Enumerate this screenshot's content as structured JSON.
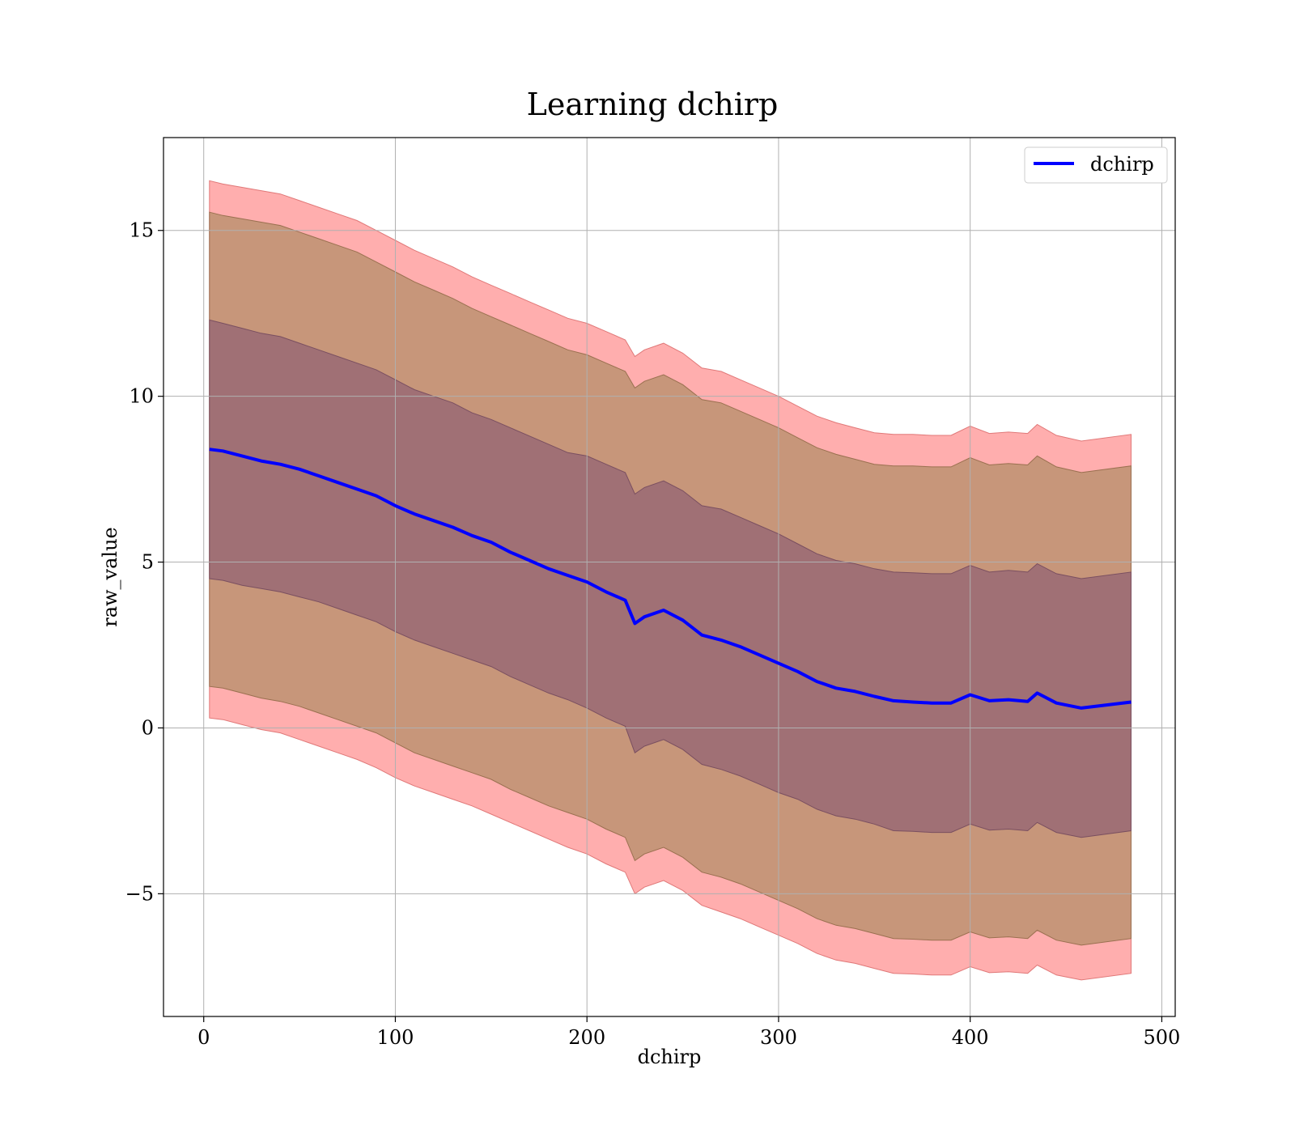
{
  "chart_data": {
    "type": "area",
    "title": "Learning dchirp",
    "xlabel": "dchirp",
    "ylabel": "raw_value",
    "xlim": [
      -21,
      507
    ],
    "ylim": [
      -8.7,
      17.8
    ],
    "xticks": [
      0,
      100,
      200,
      300,
      400,
      500
    ],
    "yticks": [
      -5,
      0,
      5,
      10,
      15
    ],
    "xtick_labels": [
      "0",
      "100",
      "200",
      "300",
      "400",
      "500"
    ],
    "ytick_labels": [
      "−5",
      "0",
      "5",
      "10",
      "15"
    ],
    "grid": true,
    "legend_position": "top-right",
    "colors": {
      "line": "#0000ff",
      "outer_band": "#ff9a9a",
      "middle_band": "#c7967a",
      "inner_band": "#a07075",
      "grid": "#b0b0b0"
    },
    "x": [
      3,
      10,
      20,
      30,
      40,
      50,
      60,
      70,
      80,
      90,
      100,
      110,
      120,
      130,
      140,
      150,
      160,
      170,
      180,
      190,
      200,
      210,
      220,
      225,
      230,
      240,
      250,
      260,
      270,
      280,
      290,
      300,
      310,
      320,
      330,
      340,
      350,
      360,
      370,
      380,
      390,
      400,
      410,
      420,
      430,
      435,
      445,
      458,
      484
    ],
    "series": [
      {
        "name": "dchirp",
        "role": "mean",
        "values": [
          8.4,
          8.35,
          8.2,
          8.05,
          7.95,
          7.8,
          7.6,
          7.4,
          7.2,
          7.0,
          6.7,
          6.45,
          6.25,
          6.05,
          5.8,
          5.6,
          5.3,
          5.05,
          4.8,
          4.6,
          4.4,
          4.1,
          3.85,
          3.15,
          3.35,
          3.55,
          3.25,
          2.8,
          2.65,
          2.45,
          2.2,
          1.95,
          1.7,
          1.4,
          1.2,
          1.1,
          0.95,
          0.82,
          0.78,
          0.75,
          0.75,
          1.0,
          0.82,
          0.85,
          0.8,
          1.05,
          0.75,
          0.6,
          0.78
        ]
      },
      {
        "role": "band_outer_upper",
        "values": [
          16.5,
          16.4,
          16.3,
          16.2,
          16.1,
          15.9,
          15.7,
          15.5,
          15.3,
          15.0,
          14.7,
          14.4,
          14.15,
          13.9,
          13.6,
          13.35,
          13.1,
          12.85,
          12.6,
          12.35,
          12.2,
          11.95,
          11.7,
          11.2,
          11.4,
          11.6,
          11.3,
          10.85,
          10.75,
          10.5,
          10.25,
          10.0,
          9.7,
          9.4,
          9.2,
          9.05,
          8.9,
          8.85,
          8.85,
          8.82,
          8.82,
          9.1,
          8.88,
          8.92,
          8.88,
          9.15,
          8.82,
          8.65,
          8.85
        ]
      },
      {
        "role": "band_middle_upper",
        "values": [
          15.55,
          15.45,
          15.35,
          15.25,
          15.15,
          14.95,
          14.75,
          14.55,
          14.35,
          14.05,
          13.75,
          13.45,
          13.2,
          12.95,
          12.65,
          12.4,
          12.15,
          11.9,
          11.65,
          11.4,
          11.25,
          11.0,
          10.75,
          10.25,
          10.45,
          10.65,
          10.35,
          9.9,
          9.8,
          9.55,
          9.3,
          9.05,
          8.75,
          8.45,
          8.25,
          8.1,
          7.95,
          7.9,
          7.9,
          7.87,
          7.87,
          8.15,
          7.93,
          7.97,
          7.93,
          8.2,
          7.87,
          7.7,
          7.9
        ]
      },
      {
        "role": "band_inner_upper",
        "values": [
          12.3,
          12.2,
          12.05,
          11.9,
          11.8,
          11.6,
          11.4,
          11.2,
          11.0,
          10.8,
          10.5,
          10.2,
          10.0,
          9.8,
          9.5,
          9.3,
          9.05,
          8.8,
          8.55,
          8.3,
          8.2,
          7.95,
          7.7,
          7.05,
          7.25,
          7.45,
          7.15,
          6.7,
          6.6,
          6.35,
          6.1,
          5.85,
          5.55,
          5.25,
          5.05,
          4.95,
          4.8,
          4.7,
          4.68,
          4.65,
          4.65,
          4.9,
          4.7,
          4.75,
          4.7,
          4.95,
          4.65,
          4.5,
          4.7
        ]
      },
      {
        "role": "band_inner_lower",
        "values": [
          4.5,
          4.45,
          4.3,
          4.2,
          4.1,
          3.95,
          3.8,
          3.6,
          3.4,
          3.2,
          2.9,
          2.65,
          2.45,
          2.25,
          2.05,
          1.85,
          1.55,
          1.3,
          1.05,
          0.85,
          0.6,
          0.3,
          0.05,
          -0.75,
          -0.55,
          -0.35,
          -0.65,
          -1.1,
          -1.25,
          -1.45,
          -1.7,
          -1.95,
          -2.15,
          -2.45,
          -2.65,
          -2.75,
          -2.9,
          -3.1,
          -3.12,
          -3.15,
          -3.15,
          -2.9,
          -3.08,
          -3.05,
          -3.1,
          -2.85,
          -3.15,
          -3.3,
          -3.1
        ]
      },
      {
        "role": "band_middle_lower",
        "values": [
          1.25,
          1.2,
          1.05,
          0.9,
          0.8,
          0.65,
          0.45,
          0.25,
          0.05,
          -0.15,
          -0.45,
          -0.75,
          -0.95,
          -1.15,
          -1.35,
          -1.55,
          -1.85,
          -2.1,
          -2.35,
          -2.55,
          -2.75,
          -3.05,
          -3.3,
          -4.0,
          -3.8,
          -3.6,
          -3.9,
          -4.35,
          -4.5,
          -4.7,
          -4.95,
          -5.2,
          -5.45,
          -5.75,
          -5.95,
          -6.05,
          -6.2,
          -6.35,
          -6.37,
          -6.4,
          -6.4,
          -6.15,
          -6.33,
          -6.3,
          -6.35,
          -6.1,
          -6.4,
          -6.55,
          -6.35
        ]
      },
      {
        "role": "band_outer_lower",
        "values": [
          0.3,
          0.25,
          0.1,
          -0.05,
          -0.15,
          -0.35,
          -0.55,
          -0.75,
          -0.95,
          -1.2,
          -1.5,
          -1.75,
          -1.95,
          -2.15,
          -2.35,
          -2.6,
          -2.85,
          -3.1,
          -3.35,
          -3.6,
          -3.8,
          -4.1,
          -4.35,
          -5.0,
          -4.8,
          -4.6,
          -4.9,
          -5.35,
          -5.55,
          -5.75,
          -6.0,
          -6.25,
          -6.5,
          -6.8,
          -7.0,
          -7.1,
          -7.25,
          -7.4,
          -7.42,
          -7.45,
          -7.45,
          -7.2,
          -7.38,
          -7.35,
          -7.4,
          -7.15,
          -7.45,
          -7.6,
          -7.4
        ]
      }
    ]
  }
}
